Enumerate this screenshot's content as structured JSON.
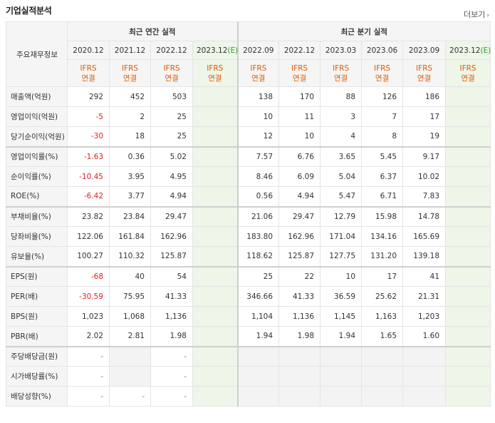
{
  "header": {
    "title": "기업실적분석",
    "more_label": "더보기"
  },
  "table": {
    "corner_label": "주요재무정보",
    "group_annual": "최근 연간 실적",
    "group_quarterly": "최근 분기 실적",
    "annual_periods": [
      "2020.12",
      "2021.12",
      "2022.12",
      "2023.12"
    ],
    "quarter_periods": [
      "2022.09",
      "2022.12",
      "2023.03",
      "2023.06",
      "2023.09",
      "2023.12"
    ],
    "estimate_mark": "(E)",
    "basis_top": "IFRS",
    "basis_bottom": "연결",
    "rows": [
      {
        "label": "매출액(억원)",
        "values": [
          "292",
          "452",
          "503",
          "",
          "138",
          "170",
          "88",
          "126",
          "186",
          ""
        ]
      },
      {
        "label": "영업이익(억원)",
        "values": [
          "-5",
          "2",
          "25",
          "",
          "10",
          "11",
          "3",
          "7",
          "17",
          ""
        ]
      },
      {
        "label": "당기순이익(억원)",
        "values": [
          "-30",
          "18",
          "25",
          "",
          "12",
          "10",
          "4",
          "8",
          "19",
          ""
        ]
      },
      {
        "label": "영업이익률(%)",
        "values": [
          "-1.63",
          "0.36",
          "5.02",
          "",
          "7.57",
          "6.76",
          "3.65",
          "5.45",
          "9.17",
          ""
        ]
      },
      {
        "label": "순이익률(%)",
        "values": [
          "-10.45",
          "3.95",
          "4.95",
          "",
          "8.46",
          "6.09",
          "5.04",
          "6.37",
          "10.02",
          ""
        ]
      },
      {
        "label": "ROE(%)",
        "values": [
          "-6.42",
          "3.77",
          "4.94",
          "",
          "0.56",
          "4.94",
          "5.47",
          "6.71",
          "7.83",
          ""
        ]
      },
      {
        "label": "부채비율(%)",
        "values": [
          "23.82",
          "23.84",
          "29.47",
          "",
          "21.06",
          "29.47",
          "12.79",
          "15.98",
          "14.78",
          ""
        ]
      },
      {
        "label": "당좌비율(%)",
        "values": [
          "122.06",
          "161.84",
          "162.96",
          "",
          "183.80",
          "162.96",
          "171.04",
          "134.16",
          "165.69",
          ""
        ]
      },
      {
        "label": "유보율(%)",
        "values": [
          "100.27",
          "110.32",
          "125.87",
          "",
          "118.62",
          "125.87",
          "127.75",
          "131.20",
          "139.18",
          ""
        ]
      },
      {
        "label": "EPS(원)",
        "values": [
          "-68",
          "40",
          "54",
          "",
          "25",
          "22",
          "10",
          "17",
          "41",
          ""
        ]
      },
      {
        "label": "PER(배)",
        "values": [
          "-30.59",
          "75.95",
          "41.33",
          "",
          "346.66",
          "41.33",
          "36.59",
          "25.62",
          "21.31",
          ""
        ]
      },
      {
        "label": "BPS(원)",
        "values": [
          "1,023",
          "1,068",
          "1,136",
          "",
          "1,104",
          "1,136",
          "1,145",
          "1,163",
          "1,203",
          ""
        ]
      },
      {
        "label": "PBR(배)",
        "values": [
          "2.02",
          "2.81",
          "1.98",
          "",
          "1.94",
          "1.98",
          "1.94",
          "1.65",
          "1.60",
          ""
        ]
      },
      {
        "label": "주당배당금(원)",
        "values": [
          "-",
          "",
          "-",
          "",
          "",
          "",
          "",
          "",
          "",
          ""
        ]
      },
      {
        "label": "시가배당률(%)",
        "values": [
          "-",
          "",
          "-",
          "",
          "",
          "",
          "",
          "",
          "",
          ""
        ]
      },
      {
        "label": "배당성향(%)",
        "values": [
          "-",
          "-",
          "-",
          "",
          "",
          "",
          "",
          "",
          "",
          ""
        ]
      }
    ]
  }
}
